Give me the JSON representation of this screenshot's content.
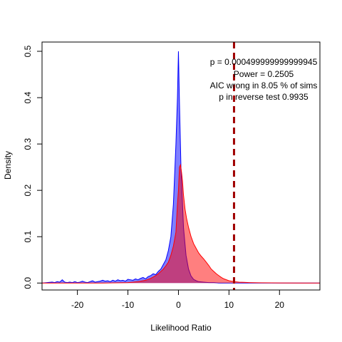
{
  "chart_data": {
    "type": "area",
    "xlabel": "Likelihood Ratio",
    "ylabel": "Density",
    "xlim": [
      -27,
      28
    ],
    "ylim": [
      -0.015,
      0.52
    ],
    "x_ticks": [
      -20,
      -10,
      0,
      10,
      20
    ],
    "y_ticks": [
      0.0,
      0.1,
      0.2,
      0.3,
      0.4,
      0.5
    ],
    "grid": false,
    "reference_line": {
      "x": 11,
      "color": "#a00000",
      "style": "dashed"
    },
    "annotations": [
      "p =  0.000499999999999945",
      "Power =  0.2505",
      "AIC wrong in  8.05 % of sims",
      "p in reverse test  0.9935"
    ],
    "series": [
      {
        "color": "#0000ff",
        "fill": "#0000ff",
        "x": [
          -27,
          -26,
          -25,
          -24.5,
          -24,
          -23.5,
          -23,
          -22.5,
          -22,
          -21.5,
          -21,
          -20.5,
          -20,
          -19.5,
          -19,
          -18.5,
          -18,
          -17.5,
          -17,
          -16.5,
          -16,
          -15.5,
          -15,
          -14.5,
          -14,
          -13.5,
          -13,
          -12.5,
          -12,
          -11.5,
          -11,
          -10.5,
          -10,
          -9.5,
          -9,
          -8.5,
          -8,
          -7.5,
          -7,
          -6.5,
          -6,
          -5.5,
          -5,
          -4.5,
          -4,
          -3.5,
          -3,
          -2.5,
          -2,
          -1.5,
          -1,
          -0.5,
          -0.2,
          0,
          0.2,
          0.5,
          1,
          1.5,
          2,
          2.5,
          3,
          3.5,
          4,
          5,
          6,
          7,
          8,
          10,
          12,
          15,
          20,
          25,
          28
        ],
        "y": [
          0,
          0.001,
          0.002,
          0.001,
          0.003,
          0.002,
          0.007,
          0.002,
          0.001,
          0.002,
          0.001,
          0.003,
          0.001,
          0.002,
          0.004,
          0.002,
          0.001,
          0.003,
          0.005,
          0.002,
          0.003,
          0.004,
          0.006,
          0.004,
          0.005,
          0.003,
          0.006,
          0.004,
          0.007,
          0.005,
          0.006,
          0.004,
          0.008,
          0.007,
          0.006,
          0.009,
          0.007,
          0.01,
          0.012,
          0.009,
          0.014,
          0.016,
          0.02,
          0.018,
          0.025,
          0.03,
          0.04,
          0.05,
          0.07,
          0.1,
          0.17,
          0.3,
          0.4,
          0.5,
          0.39,
          0.25,
          0.12,
          0.06,
          0.03,
          0.015,
          0.008,
          0.005,
          0.003,
          0.002,
          0.001,
          0.001,
          0,
          0,
          0,
          0,
          0,
          0,
          0
        ]
      },
      {
        "color": "#ff0000",
        "fill": "#ff0000",
        "x": [
          -27,
          -20,
          -15,
          -10,
          -9,
          -8,
          -7,
          -6.5,
          -6,
          -5.5,
          -5,
          -4.5,
          -4,
          -3.5,
          -3,
          -2.5,
          -2,
          -1.5,
          -1,
          -0.5,
          -0.2,
          0,
          0.2,
          0.4,
          0.6,
          0.8,
          1,
          1.3,
          1.6,
          2,
          2.5,
          3,
          3.5,
          4,
          4.5,
          5,
          5.5,
          6,
          6.5,
          7,
          7.5,
          8,
          8.5,
          9,
          10,
          11,
          12,
          13,
          14,
          16,
          20,
          25,
          28
        ],
        "y": [
          0,
          0,
          0,
          0.001,
          0.002,
          0.003,
          0.005,
          0.006,
          0.008,
          0.01,
          0.013,
          0.016,
          0.02,
          0.025,
          0.03,
          0.037,
          0.045,
          0.06,
          0.08,
          0.11,
          0.17,
          0.2,
          0.25,
          0.255,
          0.24,
          0.22,
          0.19,
          0.16,
          0.14,
          0.12,
          0.1,
          0.085,
          0.075,
          0.065,
          0.058,
          0.052,
          0.045,
          0.038,
          0.03,
          0.025,
          0.02,
          0.016,
          0.012,
          0.009,
          0.005,
          0.003,
          0.002,
          0.0015,
          0.001,
          0.0005,
          0.0002,
          0,
          0
        ]
      }
    ]
  }
}
